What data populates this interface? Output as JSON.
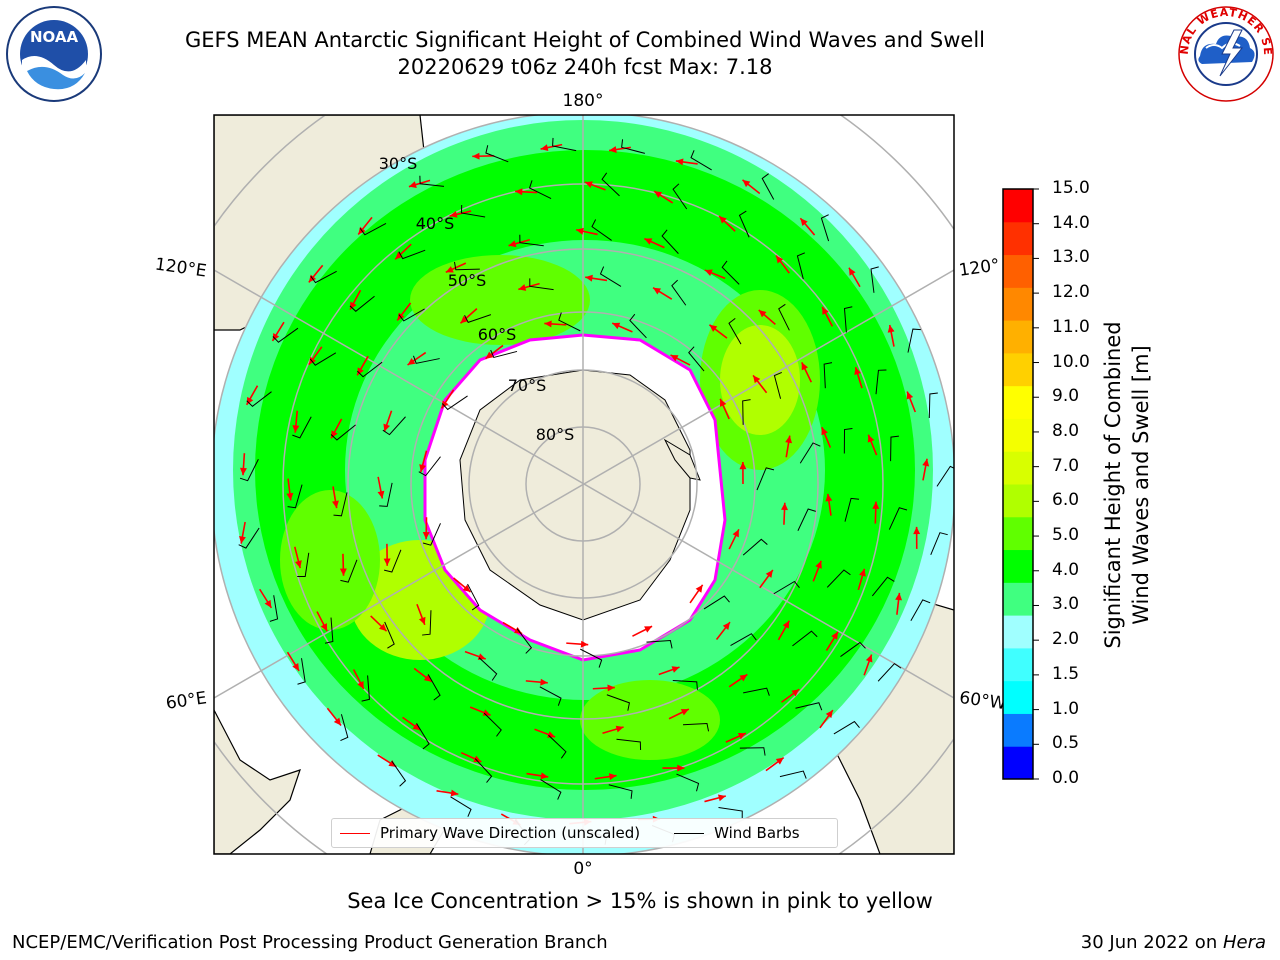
{
  "header": {
    "title_line1": "GEFS MEAN Antarctic Significant Height of Combined Wind Waves and Swell",
    "title_line2": "20220629 t06z 240h fcst   Max: 7.18",
    "left_logo": "noaa-logo",
    "right_logo": "nws-logo"
  },
  "map": {
    "projection": "south-polar-stereographic",
    "longitude_labels": {
      "top": "180°",
      "upper_left": "120°E",
      "upper_right": "120°",
      "lower_left": "60°E",
      "lower_right": "60°W",
      "bottom": "0°"
    },
    "latitude_labels": [
      "30°S",
      "40°S",
      "50°S",
      "60°S",
      "70°S",
      "80°S"
    ],
    "colors": {
      "land": "#efecdb",
      "sea_ice": "#ffffff",
      "sea_ice_edge": [
        "#ff00ff",
        "#ffa500",
        "#ffff00"
      ],
      "gridlines": "#b0b0b0",
      "wave_arrows": "#ff0000",
      "wind_barbs": "#000000"
    }
  },
  "legend": {
    "primary_label": "Primary Wave Direction (unscaled)",
    "barbs_label": "Wind Barbs",
    "primary_color": "#ff0000",
    "barbs_color": "#000000"
  },
  "colorbar": {
    "label_line1": "Significant Height of Combined",
    "label_line2": "Wind Waves and Swell [m]",
    "ticks": [
      "0.0",
      "0.5",
      "1.0",
      "1.5",
      "2.0",
      "3.0",
      "4.0",
      "5.0",
      "6.0",
      "7.0",
      "8.0",
      "9.0",
      "10.0",
      "11.0",
      "12.0",
      "13.0",
      "14.0",
      "15.0"
    ],
    "colors": [
      "#0000ff",
      "#0a7bff",
      "#00ffff",
      "#40ffff",
      "#a0ffff",
      "#40ff80",
      "#00ff00",
      "#60ff00",
      "#b0ff00",
      "#d8ff00",
      "#f4ff00",
      "#ffff00",
      "#ffd000",
      "#ffb000",
      "#ff8800",
      "#ff6000",
      "#ff3000",
      "#ff0000"
    ]
  },
  "caption": "Sea Ice Concentration > 15% is shown in pink to yellow",
  "footer": {
    "left": "NCEP/EMC/Verification Post Processing Product Generation Branch",
    "right_prefix": "30 Jun 2022 on ",
    "right_italic": "Hera"
  }
}
